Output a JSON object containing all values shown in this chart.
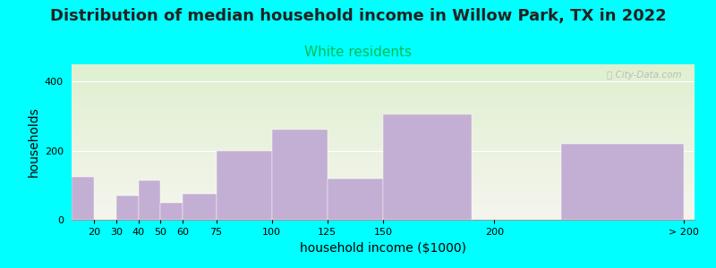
{
  "title": "Distribution of median household income in Willow Park, TX in 2022",
  "subtitle": "White residents",
  "xlabel": "household income ($1000)",
  "ylabel": "households",
  "background_color": "#00FFFF",
  "bar_color": "#c4afd4",
  "categories": [
    "20",
    "30",
    "40",
    "50",
    "60",
    "75",
    "100",
    "125",
    "150",
    "200",
    "> 200"
  ],
  "values": [
    125,
    0,
    70,
    115,
    50,
    75,
    200,
    260,
    120,
    305,
    220
  ],
  "bar_lefts": [
    10,
    20,
    30,
    40,
    50,
    60,
    75,
    100,
    125,
    150,
    230
  ],
  "bar_widths": [
    10,
    10,
    10,
    10,
    10,
    15,
    25,
    25,
    25,
    40,
    55
  ],
  "xtick_positions": [
    20,
    30,
    40,
    50,
    60,
    75,
    100,
    125,
    150,
    200,
    285
  ],
  "xlim": [
    10,
    290
  ],
  "ylim": [
    0,
    450
  ],
  "yticks": [
    0,
    200,
    400
  ],
  "title_fontsize": 13,
  "subtitle_fontsize": 11,
  "subtitle_color": "#00bb55",
  "axis_label_fontsize": 10,
  "tick_fontsize": 8,
  "watermark": "ⓘ City-Data.com"
}
